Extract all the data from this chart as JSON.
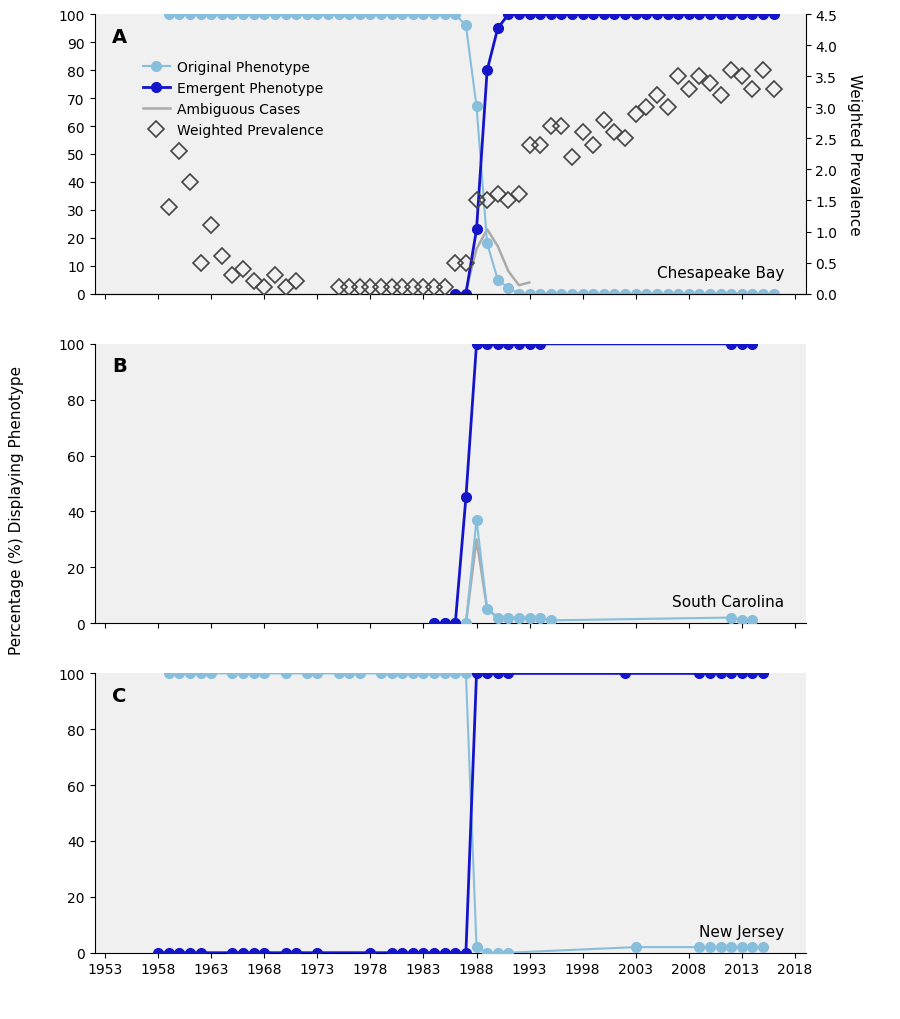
{
  "panel_A": {
    "label": "A",
    "region": "Chesapeake Bay",
    "orig_x": [
      1959,
      1960,
      1961,
      1962,
      1963,
      1964,
      1965,
      1966,
      1967,
      1968,
      1969,
      1970,
      1971,
      1972,
      1973,
      1974,
      1975,
      1976,
      1977,
      1978,
      1979,
      1980,
      1981,
      1982,
      1983,
      1984,
      1985,
      1986,
      1987,
      1988,
      1989,
      1990,
      1991,
      1992,
      1993,
      1994,
      1995,
      1996,
      1997,
      1998,
      1999,
      2000,
      2001,
      2002,
      2003,
      2004,
      2005,
      2006,
      2007,
      2008,
      2009,
      2010,
      2011,
      2012,
      2013,
      2014,
      2015,
      2016
    ],
    "orig_y": [
      100,
      100,
      100,
      100,
      100,
      100,
      100,
      100,
      100,
      100,
      100,
      100,
      100,
      100,
      100,
      100,
      100,
      100,
      100,
      100,
      100,
      100,
      100,
      100,
      100,
      100,
      100,
      100,
      96,
      67,
      18,
      5,
      2,
      0,
      0,
      0,
      0,
      0,
      0,
      0,
      0,
      0,
      0,
      0,
      0,
      0,
      0,
      0,
      0,
      0,
      0,
      0,
      0,
      0,
      0,
      0,
      0,
      0
    ],
    "emerg_x": [
      1986,
      1987,
      1988,
      1989,
      1990,
      1991,
      1992,
      1993,
      1994,
      1995,
      1996,
      1997,
      1998,
      1999,
      2000,
      2001,
      2002,
      2003,
      2004,
      2005,
      2006,
      2007,
      2008,
      2009,
      2010,
      2011,
      2012,
      2013,
      2014,
      2015,
      2016
    ],
    "emerg_y": [
      0,
      0,
      23,
      80,
      95,
      100,
      100,
      100,
      100,
      100,
      100,
      100,
      100,
      100,
      100,
      100,
      100,
      100,
      100,
      100,
      100,
      100,
      100,
      100,
      100,
      100,
      100,
      100,
      100,
      100,
      100
    ],
    "ambig_x": [
      1987,
      1988,
      1989,
      1990,
      1991,
      1992,
      1993
    ],
    "ambig_y": [
      1,
      16,
      23,
      17,
      8,
      3,
      4
    ],
    "wp_x": [
      1959,
      1960,
      1961,
      1962,
      1963,
      1964,
      1965,
      1966,
      1967,
      1968,
      1969,
      1970,
      1971,
      1975,
      1976,
      1977,
      1978,
      1979,
      1980,
      1981,
      1982,
      1983,
      1984,
      1985,
      1986,
      1987,
      1988,
      1989,
      1990,
      1991,
      1992,
      1993,
      1994,
      1995,
      1996,
      1997,
      1998,
      1999,
      2000,
      2001,
      2002,
      2003,
      2004,
      2005,
      2006,
      2007,
      2008,
      2009,
      2010,
      2011,
      2012,
      2013,
      2014,
      2015,
      2016
    ],
    "wp_y": [
      1.4,
      2.3,
      1.8,
      0.5,
      1.1,
      0.6,
      0.3,
      0.4,
      0.2,
      0.1,
      0.3,
      0.1,
      0.2,
      0.1,
      0.1,
      0.1,
      0.1,
      0.1,
      0.1,
      0.1,
      0.1,
      0.1,
      0.1,
      0.1,
      0.5,
      0.5,
      1.5,
      1.5,
      1.6,
      1.5,
      1.6,
      2.4,
      2.4,
      2.7,
      2.7,
      2.2,
      2.6,
      2.4,
      2.8,
      2.6,
      2.5,
      2.9,
      3.0,
      3.2,
      3.0,
      3.5,
      3.3,
      3.5,
      3.4,
      3.2,
      3.6,
      3.5,
      3.3,
      3.6,
      3.3
    ],
    "ylim": [
      0,
      100
    ],
    "y2lim": [
      0,
      4.5
    ],
    "yticks": [
      0,
      10,
      20,
      30,
      40,
      50,
      60,
      70,
      80,
      90,
      100
    ],
    "y2ticks": [
      0.0,
      0.5,
      1.0,
      1.5,
      2.0,
      2.5,
      3.0,
      3.5,
      4.0,
      4.5
    ],
    "has_secondary": true
  },
  "panel_B": {
    "label": "B",
    "region": "South Carolina",
    "orig_x": [
      1984,
      1985,
      1986,
      1987,
      1988,
      1989,
      1990,
      1991,
      1992,
      1993,
      1994,
      1995,
      2012,
      2013,
      2014
    ],
    "orig_y": [
      0,
      0,
      0,
      0,
      37,
      5,
      2,
      2,
      2,
      2,
      2,
      1,
      2,
      1,
      1
    ],
    "emerg_x": [
      1984,
      1985,
      1986,
      1987,
      1988,
      1989,
      1990,
      1991,
      1992,
      1993,
      1994,
      2012,
      2013,
      2014
    ],
    "emerg_y": [
      0,
      0,
      0,
      45,
      100,
      100,
      100,
      100,
      100,
      100,
      100,
      100,
      100,
      100
    ],
    "ambig_x": [
      1986,
      1987,
      1988,
      1989,
      1990
    ],
    "ambig_y": [
      0,
      0,
      30,
      5,
      2
    ],
    "ylim": [
      0,
      100
    ],
    "yticks": [
      0,
      20,
      40,
      60,
      80,
      100
    ],
    "has_secondary": false
  },
  "panel_C": {
    "label": "C",
    "region": "New Jersey",
    "orig_x": [
      1959,
      1960,
      1961,
      1962,
      1963,
      1965,
      1966,
      1967,
      1968,
      1970,
      1972,
      1973,
      1975,
      1976,
      1977,
      1979,
      1980,
      1981,
      1982,
      1983,
      1984,
      1985,
      1986,
      1987,
      1988,
      1989,
      1990,
      1991,
      2003,
      2009,
      2010,
      2011,
      2012,
      2013,
      2014,
      2015
    ],
    "orig_y": [
      100,
      100,
      100,
      100,
      100,
      100,
      100,
      100,
      100,
      100,
      100,
      100,
      100,
      100,
      100,
      100,
      100,
      100,
      100,
      100,
      100,
      100,
      100,
      100,
      2,
      0,
      0,
      0,
      2,
      2,
      2,
      2,
      2,
      2,
      2,
      2
    ],
    "emerg_x": [
      1958,
      1959,
      1960,
      1961,
      1962,
      1965,
      1966,
      1967,
      1968,
      1970,
      1971,
      1973,
      1978,
      1980,
      1981,
      1982,
      1983,
      1984,
      1985,
      1986,
      1987,
      1988,
      1989,
      1990,
      1991,
      2002,
      2009,
      2010,
      2011,
      2012,
      2013,
      2014,
      2015
    ],
    "emerg_y": [
      0,
      0,
      0,
      0,
      0,
      0,
      0,
      0,
      0,
      0,
      0,
      0,
      0,
      0,
      0,
      0,
      0,
      0,
      0,
      0,
      0,
      100,
      100,
      100,
      100,
      100,
      100,
      100,
      100,
      100,
      100,
      100,
      100
    ],
    "ylim": [
      0,
      100
    ],
    "yticks": [
      0,
      20,
      40,
      60,
      80,
      100
    ],
    "has_secondary": false
  },
  "colors": {
    "original": "#87BEDC",
    "emergent": "#1414C8",
    "ambiguous": "#AAAAAA",
    "wp_edge": "#333333",
    "bg": "#F0F0F0"
  },
  "xlim": [
    1952,
    2019
  ],
  "xticks": [
    1953,
    1958,
    1963,
    1968,
    1973,
    1978,
    1983,
    1988,
    1993,
    1998,
    2003,
    2008,
    2013,
    2018
  ],
  "ylabel": "Percentage (%) Displaying Phenotype",
  "y2label": "Weighted Prevalence",
  "figsize": [
    9.0,
    10.2
  ]
}
